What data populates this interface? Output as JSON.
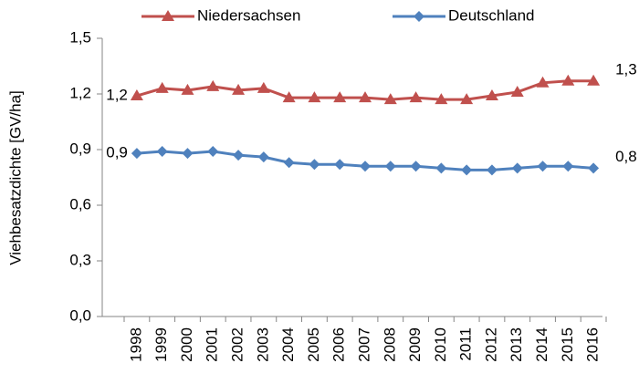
{
  "chart_data": {
    "type": "line",
    "y_label": "Viehbesatzdichte [GV/ha]",
    "categories": [
      "1998",
      "1999",
      "2000",
      "2001",
      "2002",
      "2003",
      "2004",
      "2005",
      "2006",
      "2007",
      "2008",
      "2009",
      "2010",
      "2011",
      "2012",
      "2013",
      "2014",
      "2015",
      "2016"
    ],
    "series": [
      {
        "name": "Niedersachsen",
        "color": "#c0504d",
        "marker": "triangle",
        "values": [
          1.19,
          1.23,
          1.22,
          1.24,
          1.22,
          1.23,
          1.18,
          1.18,
          1.18,
          1.18,
          1.17,
          1.18,
          1.17,
          1.17,
          1.19,
          1.21,
          1.26,
          1.27,
          1.27
        ],
        "value_labels": [
          "1,2",
          null,
          null,
          null,
          null,
          null,
          null,
          null,
          null,
          null,
          null,
          null,
          null,
          null,
          null,
          null,
          null,
          null,
          "1,3"
        ]
      },
      {
        "name": "Deutschland",
        "color": "#4f81bd",
        "marker": "diamond",
        "values": [
          0.88,
          0.89,
          0.88,
          0.89,
          0.87,
          0.86,
          0.83,
          0.82,
          0.82,
          0.81,
          0.81,
          0.81,
          0.8,
          0.79,
          0.79,
          0.8,
          0.81,
          0.81,
          0.8
        ],
        "value_labels": [
          "0,9",
          null,
          null,
          null,
          null,
          null,
          null,
          null,
          null,
          null,
          null,
          null,
          null,
          null,
          null,
          null,
          null,
          null,
          "0,8"
        ]
      }
    ],
    "ylim": [
      0,
      1.5
    ],
    "yticks": [
      {
        "value": 0,
        "label": "0,0"
      },
      {
        "value": 0.3,
        "label": "0,3"
      },
      {
        "value": 0.6,
        "label": "0,6"
      },
      {
        "value": 0.9,
        "label": "0,9"
      },
      {
        "value": 1.2,
        "label": "1,2"
      },
      {
        "value": 1.5,
        "label": "1,5"
      }
    ],
    "legend": "top"
  }
}
